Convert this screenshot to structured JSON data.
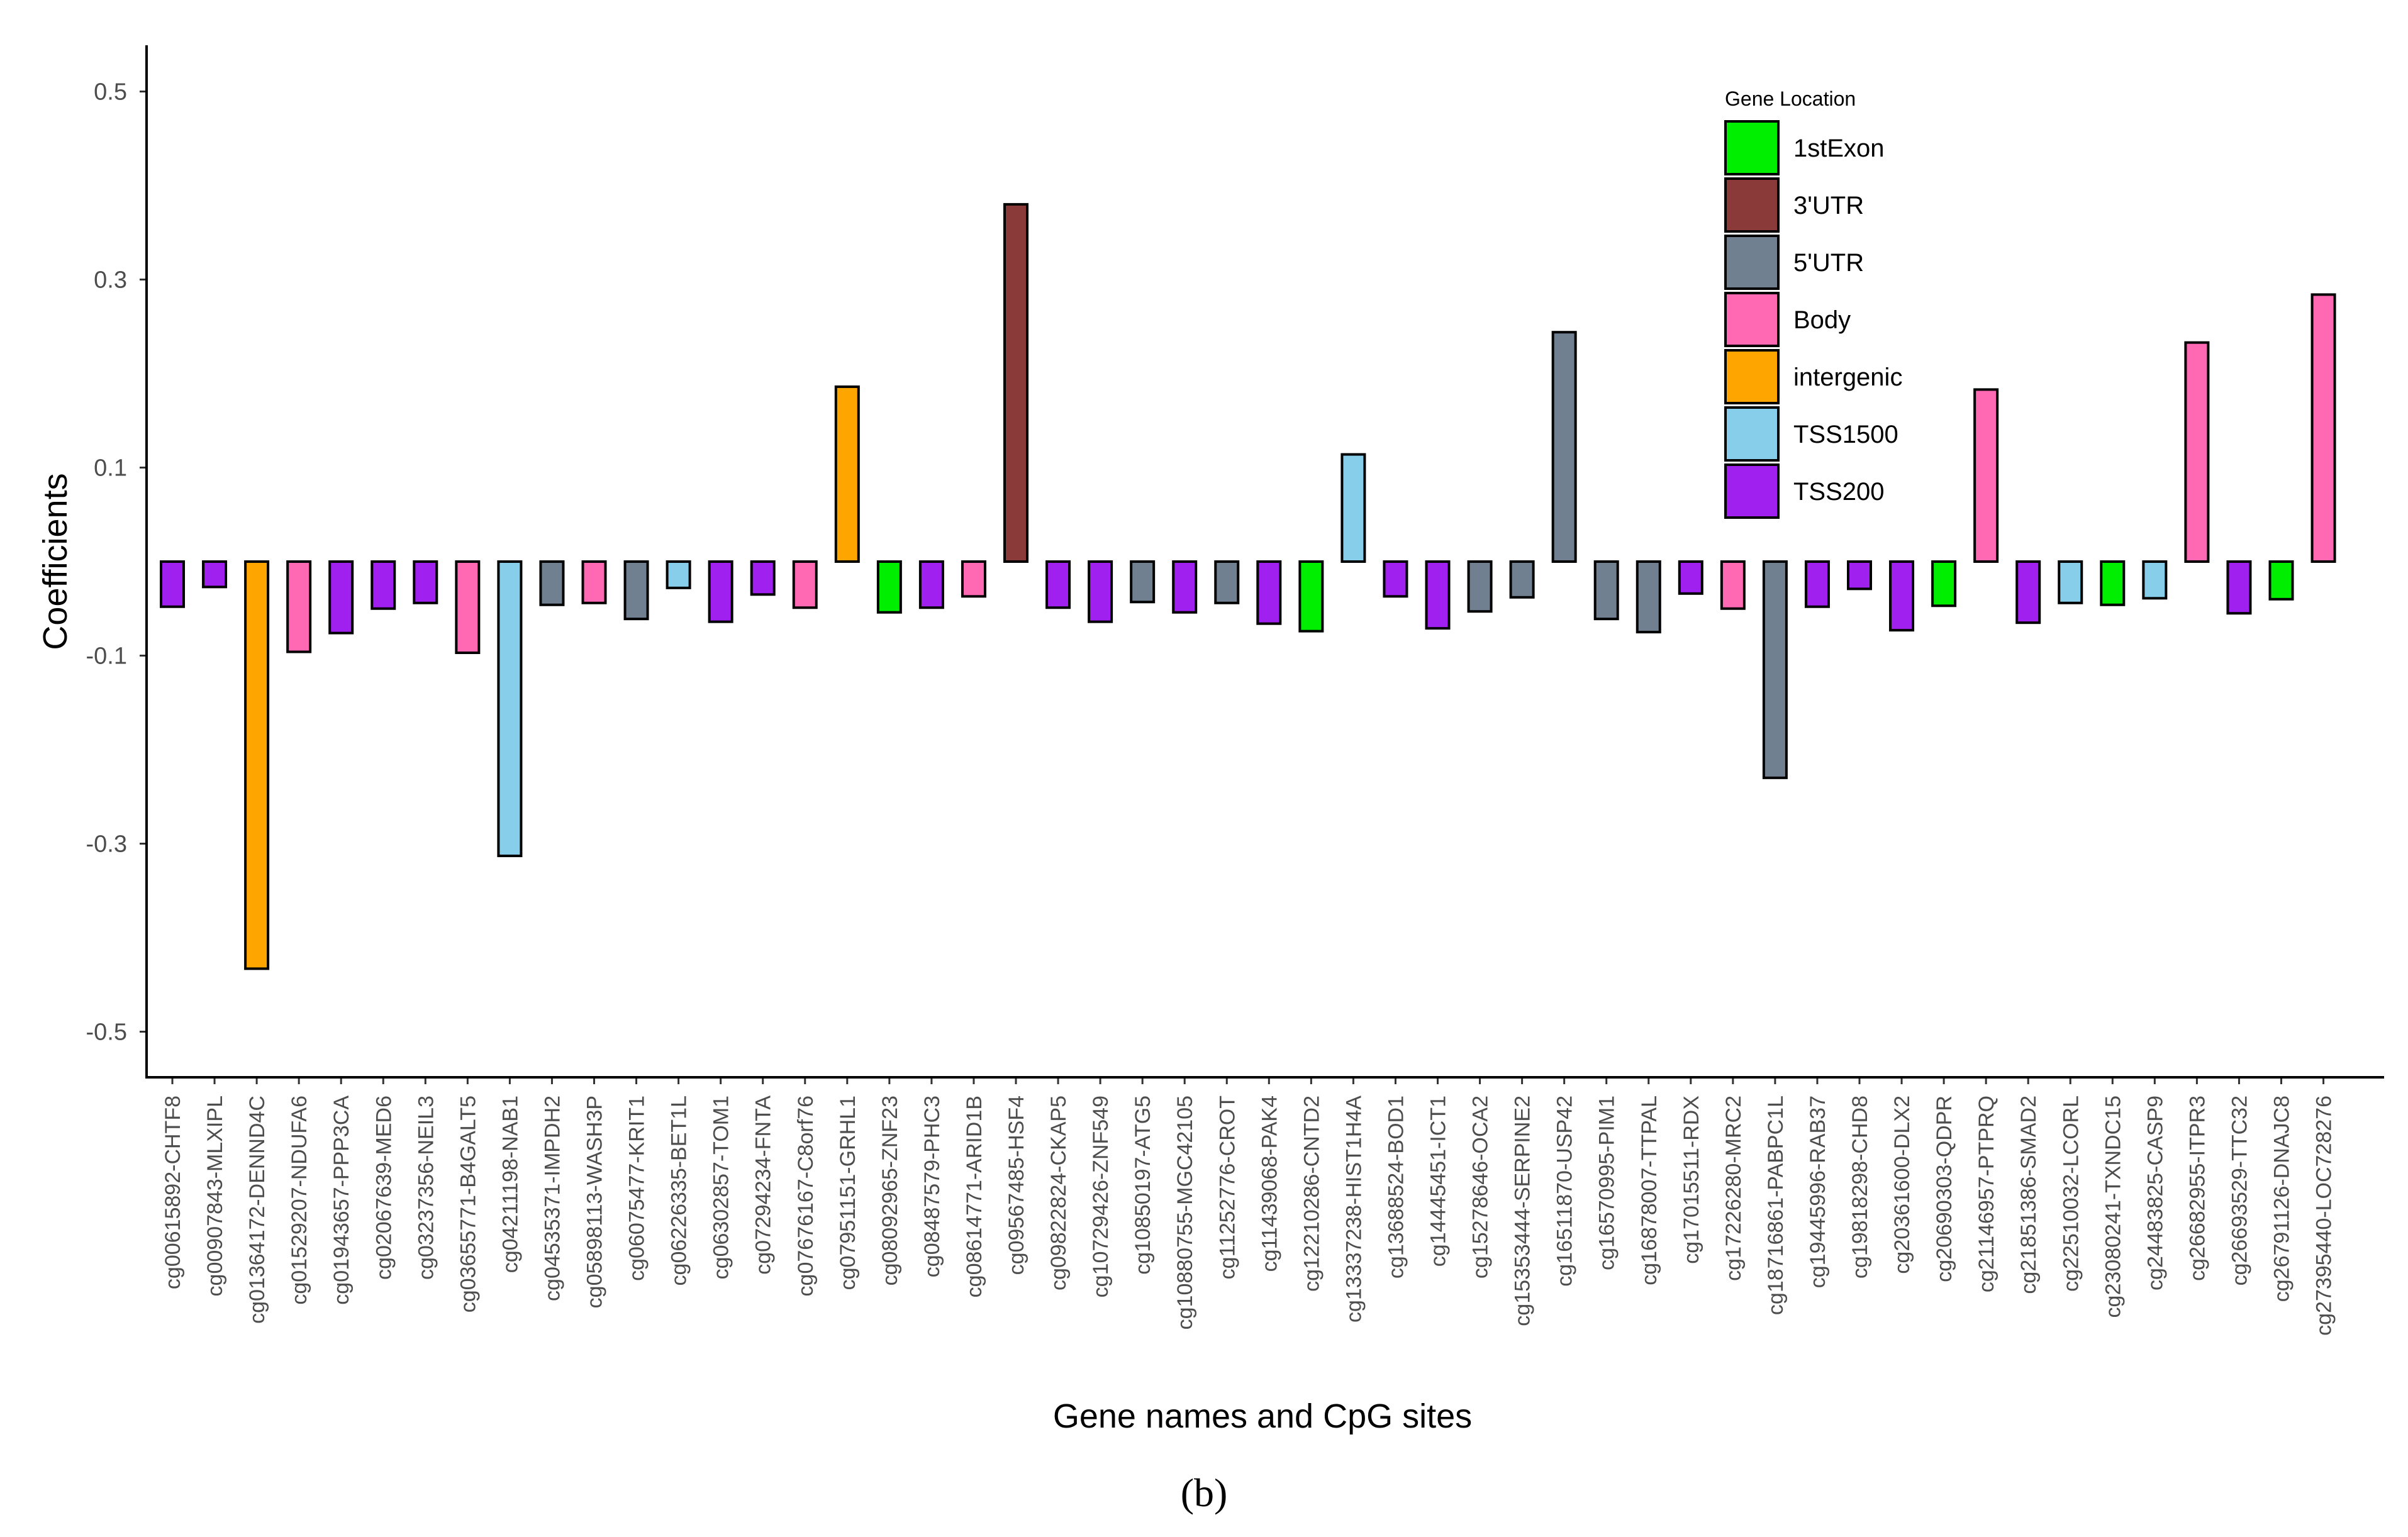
{
  "chart_data": {
    "type": "bar",
    "xlabel": "Gene names and CpG sites",
    "ylabel": "Coefficients",
    "ylim": [
      -0.55,
      0.55
    ],
    "yticks": [
      0.5,
      0.3,
      0.1,
      -0.1,
      -0.3,
      -0.5
    ],
    "ytick_labels": [
      "0.5",
      "0.3",
      "0.1",
      "-0.1",
      "-0.3",
      "-0.5"
    ],
    "grid": false,
    "legend": {
      "title": "Gene Location",
      "position": "top-right",
      "entries": [
        {
          "label": "1stExon",
          "color": "#00ee00"
        },
        {
          "label": "3'UTR",
          "color": "#8b3a3a"
        },
        {
          "label": "5'UTR",
          "color": "#708090"
        },
        {
          "label": "Body",
          "color": "#ff69b4"
        },
        {
          "label": "intergenic",
          "color": "#ffa500"
        },
        {
          "label": "TSS1500",
          "color": "#87ceeb"
        },
        {
          "label": "TSS200",
          "color": "#a020f0"
        }
      ]
    },
    "categories": [
      "cg00615892-CHTF8",
      "cg00907843-MLXIPL",
      "cg01364172-DENND4C",
      "cg01529207-NDUFA6",
      "cg01943657-PPP3CA",
      "cg02067639-MED6",
      "cg03237356-NEIL3",
      "cg03655771-B4GALT5",
      "cg04211198-NAB1",
      "cg04535371-IMPDH2",
      "cg05898113-WASH3P",
      "cg06075477-KRIT1",
      "cg06226335-BET1L",
      "cg06302857-TOM1",
      "cg07294234-FNTA",
      "cg07676167-C8orf76",
      "cg07951151-GRHL1",
      "cg08092965-ZNF23",
      "cg08487579-PHC3",
      "cg08614771-ARID1B",
      "cg09567485-HSF4",
      "cg09822824-CKAP5",
      "cg10729426-ZNF549",
      "cg10850197-ATG5",
      "cg10880755-MGC42105",
      "cg11252776-CROT",
      "cg11439068-PAK4",
      "cg12210286-CNTD2",
      "cg13337238-HIST1H4A",
      "cg13688524-BOD1",
      "cg14445451-ICT1",
      "cg15278646-OCA2",
      "cg15353444-SERPINE2",
      "cg16511870-USP42",
      "cg16570995-PIM1",
      "cg16878007-TTPAL",
      "cg17015511-RDX",
      "cg17226280-MRC2",
      "cg18716861-PABPC1L",
      "cg19445996-RAB37",
      "cg19818298-CHD8",
      "cg20361600-DLX2",
      "cg20690303-QDPR",
      "cg21146957-PTPRQ",
      "cg21851386-SMAD2",
      "cg22510032-LCORL",
      "cg23080241-TXNDC15",
      "cg24483825-CASP9",
      "cg26682955-ITPR3",
      "cg26693529-TTC32",
      "cg26791126-DNAJC8",
      "cg27395440-LOC728276"
    ],
    "values": [
      -0.048,
      -0.027,
      -0.433,
      -0.096,
      -0.076,
      -0.05,
      -0.044,
      -0.097,
      -0.313,
      -0.046,
      -0.044,
      -0.061,
      -0.028,
      -0.064,
      -0.035,
      -0.049,
      0.186,
      -0.054,
      -0.049,
      -0.037,
      0.38,
      -0.049,
      -0.064,
      -0.043,
      -0.054,
      -0.044,
      -0.066,
      -0.074,
      0.114,
      -0.037,
      -0.071,
      -0.053,
      -0.038,
      0.244,
      -0.061,
      -0.075,
      -0.034,
      -0.05,
      -0.23,
      -0.048,
      -0.029,
      -0.073,
      -0.047,
      0.183,
      -0.065,
      -0.044,
      -0.046,
      -0.039,
      0.233,
      -0.055,
      -0.04,
      0.284
    ],
    "locations": [
      "TSS200",
      "TSS200",
      "intergenic",
      "Body",
      "TSS200",
      "TSS200",
      "TSS200",
      "Body",
      "TSS1500",
      "5'UTR",
      "Body",
      "5'UTR",
      "TSS1500",
      "TSS200",
      "TSS200",
      "Body",
      "intergenic",
      "1stExon",
      "TSS200",
      "Body",
      "3'UTR",
      "TSS200",
      "TSS200",
      "5'UTR",
      "TSS200",
      "5'UTR",
      "TSS200",
      "1stExon",
      "TSS1500",
      "TSS200",
      "TSS200",
      "5'UTR",
      "5'UTR",
      "5'UTR",
      "5'UTR",
      "5'UTR",
      "TSS200",
      "Body",
      "5'UTR",
      "TSS200",
      "TSS200",
      "TSS200",
      "1stExon",
      "Body",
      "TSS200",
      "TSS1500",
      "1stExon",
      "TSS1500",
      "Body",
      "TSS200",
      "1stExon",
      "Body"
    ]
  },
  "panel_label": "(b)"
}
